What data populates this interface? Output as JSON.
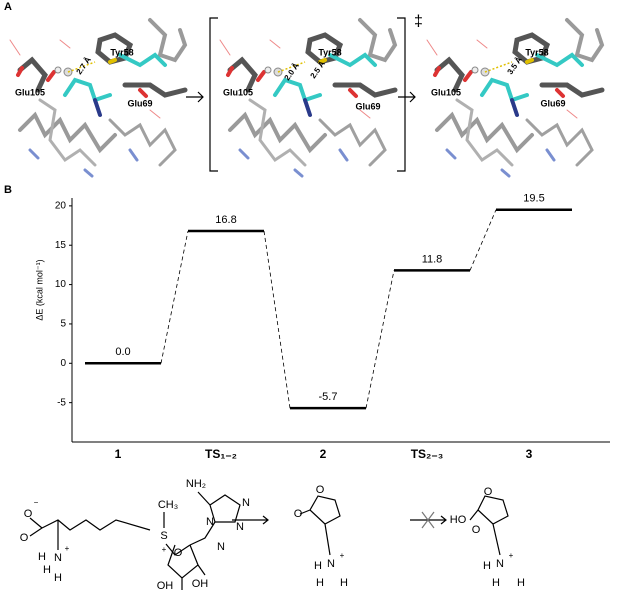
{
  "panel_a": {
    "label": "A",
    "ts_mark": "‡",
    "frames": [
      {
        "residues": [
          "Tyr58",
          "Glu105",
          "Glu69"
        ],
        "distances": [
          "2.7 Å"
        ]
      },
      {
        "residues": [
          "Tyr58",
          "Glu105",
          "Glu69"
        ],
        "distances": [
          "2.0 Å",
          "2.5 Å"
        ]
      },
      {
        "residues": [
          "Tyr58",
          "Glu105",
          "Glu69"
        ],
        "distances": [
          "3.5 Å"
        ]
      }
    ]
  },
  "panel_b": {
    "label": "B"
  },
  "chart_data": {
    "type": "energy_levels",
    "ylabel": "ΔE (kcal mol⁻¹)",
    "categories": [
      "1",
      "TS₁₋₂",
      "2",
      "TS₂₋₃",
      "3"
    ],
    "values": [
      0.0,
      16.8,
      -5.7,
      11.8,
      19.5
    ],
    "value_labels": [
      "0.0",
      "16.8",
      "-5.7",
      "11.8",
      "19.5"
    ],
    "color": "#000000",
    "ylim": [
      -10,
      21
    ],
    "yticks": [
      -5,
      0,
      5,
      10,
      15,
      20
    ]
  },
  "molecules": [
    {
      "atoms": [
        "O",
        "−",
        "O",
        "H",
        "N",
        "+",
        "H",
        "H",
        "S",
        "+",
        "CH₃",
        "NH₂",
        "N",
        "N",
        "N",
        "N",
        "O",
        "OH",
        "OH"
      ]
    },
    {
      "atoms": [
        "O",
        "O",
        "H",
        "N",
        "+",
        "H",
        "H"
      ]
    },
    {
      "atoms": [
        "O",
        "HO",
        "O",
        "H",
        "N",
        "+",
        "H",
        "H"
      ]
    }
  ]
}
